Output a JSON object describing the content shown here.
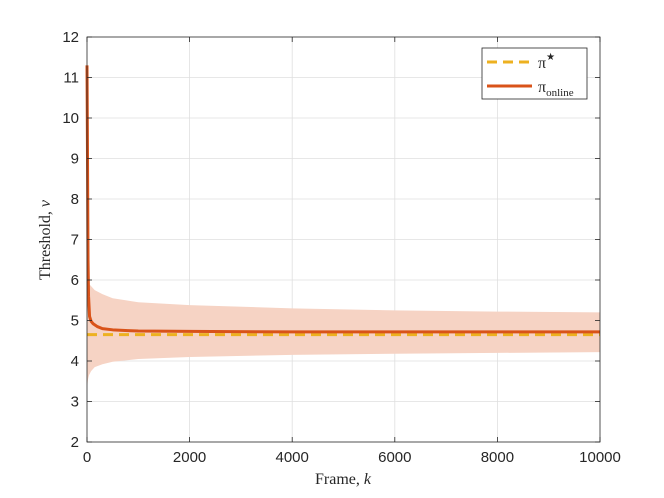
{
  "chart_data": {
    "type": "line",
    "title": "",
    "xlabel": "Frame, ",
    "xlabel_var": "k",
    "ylabel": "Threshold, ",
    "ylabel_var": "v",
    "xlim": [
      0,
      10000
    ],
    "ylim": [
      2,
      12
    ],
    "xticks": [
      0,
      2000,
      4000,
      6000,
      8000,
      10000
    ],
    "yticks": [
      2,
      3,
      4,
      5,
      6,
      7,
      8,
      9,
      10,
      11,
      12
    ],
    "grid": true,
    "legend_position": "top-right",
    "colors": {
      "optimal": "#EDB120",
      "online": "#D95319",
      "band": "#F6D3C4",
      "grid": "#DFDFDF",
      "axis": "#262626"
    },
    "series": [
      {
        "name": "π★",
        "name_base": "π",
        "name_sup": "★",
        "style": "dashed",
        "x": [
          0,
          10000
        ],
        "y": [
          4.65,
          4.65
        ]
      },
      {
        "name": "πonline",
        "name_base": "π",
        "name_sub": "online",
        "style": "solid",
        "x": [
          0,
          10,
          20,
          30,
          50,
          80,
          120,
          200,
          300,
          500,
          800,
          1000,
          2000,
          4000,
          6000,
          8000,
          10000
        ],
        "y": [
          11.3,
          9.0,
          6.5,
          5.6,
          5.1,
          4.98,
          4.92,
          4.85,
          4.8,
          4.77,
          4.75,
          4.74,
          4.73,
          4.72,
          4.72,
          4.72,
          4.72
        ]
      }
    ],
    "band": {
      "x": [
        0,
        10,
        20,
        40,
        80,
        150,
        300,
        500,
        1000,
        2000,
        4000,
        6000,
        8000,
        10000
      ],
      "upper": [
        6.0,
        6.0,
        5.95,
        5.9,
        5.85,
        5.75,
        5.65,
        5.55,
        5.45,
        5.38,
        5.3,
        5.25,
        5.22,
        5.2
      ],
      "lower": [
        3.4,
        3.45,
        3.55,
        3.65,
        3.75,
        3.85,
        3.92,
        3.98,
        4.05,
        4.1,
        4.15,
        4.18,
        4.2,
        4.22
      ]
    }
  }
}
